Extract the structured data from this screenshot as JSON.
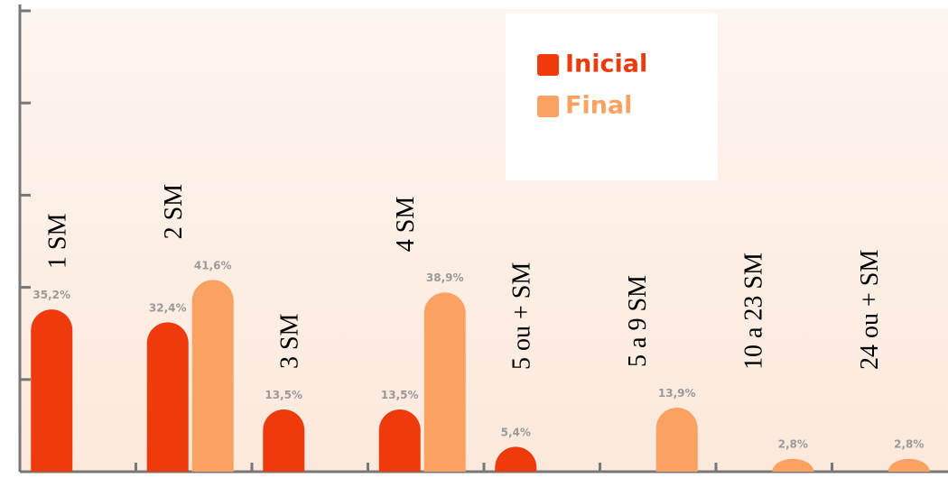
{
  "chart_data": {
    "type": "bar",
    "categories": [
      "1 SM",
      "2 SM",
      "3 SM",
      "4 SM",
      "5 ou + SM",
      "5 a 9 SM",
      "10 a 23 SM",
      "24 ou + SM"
    ],
    "series": [
      {
        "name": "Inicial",
        "color": "#ee3a0c",
        "values": [
          35.2,
          32.4,
          13.5,
          13.5,
          5.4,
          null,
          null,
          null
        ],
        "value_labels": [
          "35,2%",
          "32,4%",
          "13,5%",
          "13,5%",
          "5,4%",
          null,
          null,
          null
        ]
      },
      {
        "name": "Final",
        "color": "#fba262",
        "values": [
          null,
          41.6,
          null,
          38.9,
          null,
          13.9,
          2.8,
          2.8
        ],
        "value_labels": [
          null,
          "41,6%",
          null,
          "38,9%",
          null,
          "13,9%",
          "2,8%",
          "2,8%"
        ]
      }
    ],
    "ylim": [
      0,
      100
    ],
    "yticks": [
      0,
      20,
      40,
      60,
      80,
      100
    ],
    "legend": "top-right"
  }
}
